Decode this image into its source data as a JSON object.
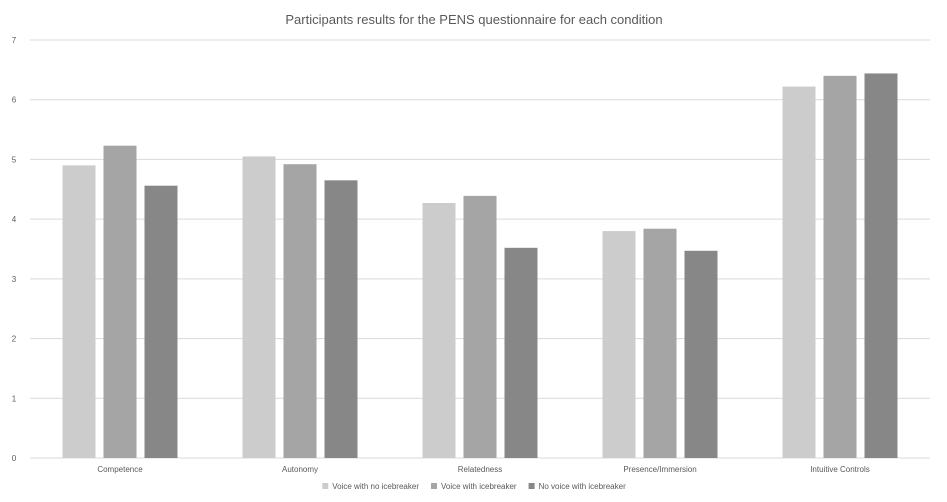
{
  "chart_data": {
    "type": "bar",
    "title": "Participants results for the PENS questionnaire for each condition",
    "xlabel": "",
    "ylabel": "",
    "ylim": [
      0,
      7
    ],
    "yticks": [
      "0",
      "1",
      "2",
      "3",
      "4",
      "5",
      "6",
      "7"
    ],
    "categories": [
      "Competence",
      "Autonomy",
      "Relatedness",
      "Presence/Immersion",
      "Intuitive Controls"
    ],
    "series": [
      {
        "name": "Voice with no icebreaker",
        "color": "#cccccc",
        "values": [
          4.9,
          5.05,
          4.27,
          3.8,
          6.22
        ]
      },
      {
        "name": "Voice with icebreaker",
        "color": "#a5a5a5",
        "values": [
          5.23,
          4.92,
          4.39,
          3.84,
          6.4
        ]
      },
      {
        "name": "No voice with icebreaker",
        "color": "#878787",
        "values": [
          4.56,
          4.65,
          3.52,
          3.47,
          6.44
        ]
      }
    ],
    "grid": true,
    "legend_position": "bottom"
  }
}
